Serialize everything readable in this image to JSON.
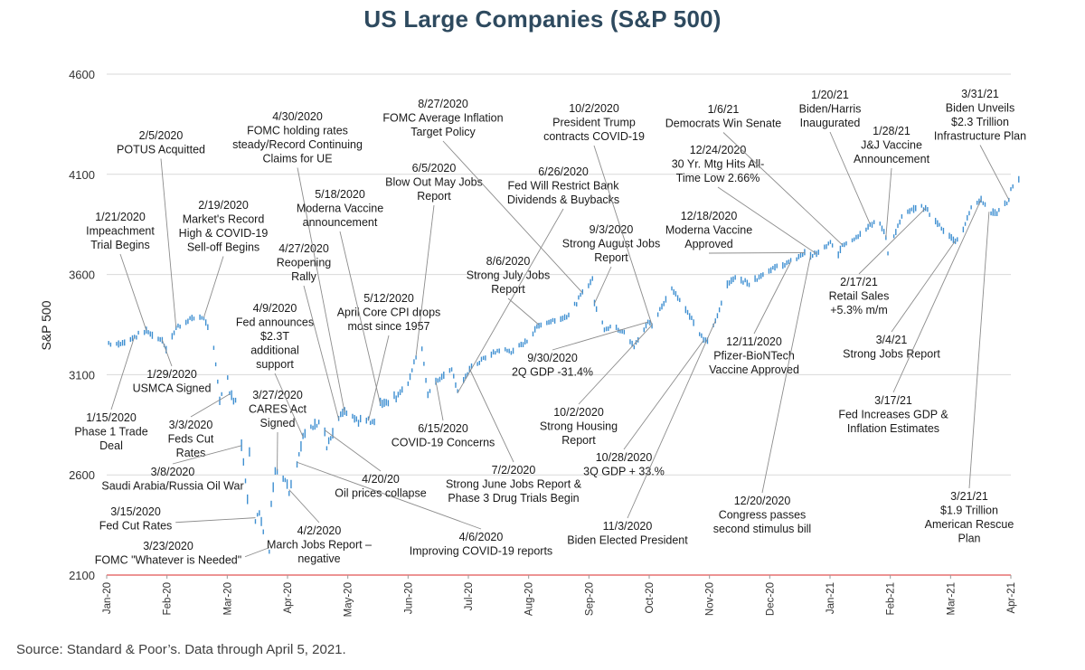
{
  "chart_data": {
    "type": "line",
    "title": "US Large Companies (S&P 500)",
    "ylabel": "S&P 500",
    "xlabel": "",
    "ylim": [
      2100,
      4600
    ],
    "yticks": [
      2100,
      2600,
      3100,
      3600,
      4100,
      4600
    ],
    "grid": true,
    "xticks": [
      "Jan-20",
      "Feb-20",
      "Mar-20",
      "Apr-20",
      "May-20",
      "Jun-20",
      "Jul-20",
      "Aug-20",
      "Sep-20",
      "Oct-20",
      "Nov-20",
      "Dec-20",
      "Jan-21",
      "Feb-21",
      "Mar-21",
      "Apr-21"
    ],
    "series": [
      {
        "color": "#3e8fd1",
        "points": [
          [
            "2020-01-02",
            3258
          ],
          [
            "2020-01-08",
            3253
          ],
          [
            "2020-01-15",
            3289
          ],
          [
            "2020-01-21",
            3321
          ],
          [
            "2020-01-24",
            3295
          ],
          [
            "2020-01-29",
            3273
          ],
          [
            "2020-01-31",
            3225
          ],
          [
            "2020-02-05",
            3334
          ],
          [
            "2020-02-12",
            3379
          ],
          [
            "2020-02-19",
            3386
          ],
          [
            "2020-02-21",
            3337
          ],
          [
            "2020-02-24",
            3225
          ],
          [
            "2020-02-27",
            2979
          ],
          [
            "2020-03-02",
            3090
          ],
          [
            "2020-03-03",
            3003
          ],
          [
            "2020-03-06",
            2972
          ],
          [
            "2020-03-09",
            2746
          ],
          [
            "2020-03-12",
            2480
          ],
          [
            "2020-03-13",
            2711
          ],
          [
            "2020-03-16",
            2386
          ],
          [
            "2020-03-18",
            2398
          ],
          [
            "2020-03-23",
            2237
          ],
          [
            "2020-03-24",
            2447
          ],
          [
            "2020-03-26",
            2630
          ],
          [
            "2020-03-31",
            2585
          ],
          [
            "2020-04-02",
            2526
          ],
          [
            "2020-04-06",
            2663
          ],
          [
            "2020-04-09",
            2790
          ],
          [
            "2020-04-17",
            2875
          ],
          [
            "2020-04-20",
            2823
          ],
          [
            "2020-04-21",
            2737
          ],
          [
            "2020-04-27",
            2878
          ],
          [
            "2020-04-30",
            2912
          ],
          [
            "2020-05-05",
            2868
          ],
          [
            "2020-05-12",
            2870
          ],
          [
            "2020-05-14",
            2852
          ],
          [
            "2020-05-18",
            2954
          ],
          [
            "2020-05-26",
            2992
          ],
          [
            "2020-06-01",
            3055
          ],
          [
            "2020-06-05",
            3194
          ],
          [
            "2020-06-08",
            3232
          ],
          [
            "2020-06-11",
            3002
          ],
          [
            "2020-06-15",
            3067
          ],
          [
            "2020-06-23",
            3131
          ],
          [
            "2020-06-26",
            3009
          ],
          [
            "2020-07-02",
            3130
          ],
          [
            "2020-07-10",
            3185
          ],
          [
            "2020-07-17",
            3224
          ],
          [
            "2020-07-24",
            3216
          ],
          [
            "2020-07-31",
            3271
          ],
          [
            "2020-08-06",
            3349
          ],
          [
            "2020-08-14",
            3373
          ],
          [
            "2020-08-21",
            3397
          ],
          [
            "2020-08-28",
            3508
          ],
          [
            "2020-09-02",
            3580
          ],
          [
            "2020-09-03",
            3455
          ],
          [
            "2020-09-08",
            3332
          ],
          [
            "2020-09-11",
            3340
          ],
          [
            "2020-09-18",
            3319
          ],
          [
            "2020-09-23",
            3237
          ],
          [
            "2020-09-30",
            3363
          ],
          [
            "2020-10-02",
            3348
          ],
          [
            "2020-10-12",
            3534
          ],
          [
            "2020-10-19",
            3427
          ],
          [
            "2020-10-28",
            3271
          ],
          [
            "2020-10-30",
            3270
          ],
          [
            "2020-11-03",
            3369
          ],
          [
            "2020-11-09",
            3551
          ],
          [
            "2020-11-13",
            3585
          ],
          [
            "2020-11-20",
            3557
          ],
          [
            "2020-11-30",
            3622
          ],
          [
            "2020-12-11",
            3663
          ],
          [
            "2020-12-18",
            3709
          ],
          [
            "2020-12-21",
            3694
          ],
          [
            "2020-12-24",
            3703
          ],
          [
            "2020-12-31",
            3756
          ],
          [
            "2021-01-04",
            3700
          ],
          [
            "2021-01-06",
            3748
          ],
          [
            "2021-01-14",
            3795
          ],
          [
            "2021-01-20",
            3851
          ],
          [
            "2021-01-25",
            3855
          ],
          [
            "2021-01-28",
            3787
          ],
          [
            "2021-01-29",
            3714
          ],
          [
            "2021-02-05",
            3886
          ],
          [
            "2021-02-12",
            3934
          ],
          [
            "2021-02-17",
            3931
          ],
          [
            "2021-02-25",
            3829
          ],
          [
            "2021-03-04",
            3768
          ],
          [
            "2021-03-08",
            3821
          ],
          [
            "2021-03-12",
            3943
          ],
          [
            "2021-03-17",
            3974
          ],
          [
            "2021-03-21",
            3913
          ],
          [
            "2021-03-25",
            3909
          ],
          [
            "2021-03-31",
            3973
          ],
          [
            "2021-04-01",
            4020
          ],
          [
            "2021-04-05",
            4077
          ]
        ]
      }
    ],
    "annotations": [
      {
        "label": "1/15/2020\nPhase 1 Trade\nDeal",
        "date": "2020-01-15"
      },
      {
        "label": "1/21/2020\nImpeachment\nTrial Begins",
        "date": "2020-01-21"
      },
      {
        "label": "1/29/2020\nUSMCA Signed",
        "date": "2020-01-29"
      },
      {
        "label": "2/5/2020\nPOTUS Acquitted",
        "date": "2020-02-05"
      },
      {
        "label": "2/19/2020\nMarket's Record\nHigh & COVID-19\nSell-off Begins",
        "date": "2020-02-19"
      },
      {
        "label": "3/3/2020\nFeds Cut\nRates",
        "date": "2020-03-03"
      },
      {
        "label": "3/8/2020\nSaudi Arabia/Russia Oil War",
        "date": "2020-03-09"
      },
      {
        "label": "3/15/2020\nFed Cut Rates",
        "date": "2020-03-16"
      },
      {
        "label": "3/23/2020\nFOMC \"Whatever is Needed\"",
        "date": "2020-03-23"
      },
      {
        "label": "3/27/2020\nCARES Act\nSigned",
        "date": "2020-03-27"
      },
      {
        "label": "4/2/2020\nMarch Jobs Report –\nnegative",
        "date": "2020-04-02"
      },
      {
        "label": "4/6/2020\nImproving COVID-19 reports",
        "date": "2020-04-06"
      },
      {
        "label": "4/9/2020\nFed announces\n$2.3T\nadditional\nsupport",
        "date": "2020-04-09"
      },
      {
        "label": "4/20/20\nOil prices collapse",
        "date": "2020-04-20"
      },
      {
        "label": "4/27/2020\nReopening\nRally",
        "date": "2020-04-27"
      },
      {
        "label": "4/30/2020\nFOMC holding rates\nsteady/Record Continuing\nClaims for UE",
        "date": "2020-04-30"
      },
      {
        "label": "5/12/2020\nApril Core CPI drops\nmost since 1957",
        "date": "2020-05-12"
      },
      {
        "label": "5/18/2020\nModerna Vaccine\nannouncement",
        "date": "2020-05-18"
      },
      {
        "label": "6/5/2020\nBlow Out May Jobs\nReport",
        "date": "2020-06-05"
      },
      {
        "label": "6/15/2020\nCOVID-19 Concerns",
        "date": "2020-06-15"
      },
      {
        "label": "6/26/2020\nFed Will Restrict Bank\nDividends & Buybacks",
        "date": "2020-06-26"
      },
      {
        "label": "7/2/2020\nStrong June Jobs Report &\nPhase 3 Drug Trials Begin",
        "date": "2020-07-02"
      },
      {
        "label": "8/6/2020\nStrong July Jobs\nReport",
        "date": "2020-08-06"
      },
      {
        "label": "8/27/2020\nFOMC Average Inflation\nTarget Policy",
        "date": "2020-08-28"
      },
      {
        "label": "9/3/2020\nStrong August Jobs\nReport",
        "date": "2020-09-03"
      },
      {
        "label": "9/30/2020\n2Q GDP -31.4%",
        "date": "2020-09-30"
      },
      {
        "label": "10/2/2020\nPresident Trump\ncontracts COVID-19",
        "date": "2020-10-02"
      },
      {
        "label": "10/2/2020\nStrong Housing\nReport",
        "date": "2020-10-02"
      },
      {
        "label": "10/28/2020\n3Q GDP + 33.%",
        "date": "2020-10-28"
      },
      {
        "label": "11/3/2020\nBiden Elected President",
        "date": "2020-11-03"
      },
      {
        "label": "12/11/2020\nPfizer-BioNTech\nVaccine Approved",
        "date": "2020-12-11"
      },
      {
        "label": "12/18/2020\nModerna Vaccine\nApproved",
        "date": "2020-12-18"
      },
      {
        "label": "12/20/2020\nCongress passes\nsecond stimulus bill",
        "date": "2020-12-21"
      },
      {
        "label": "12/24/2020\n30 Yr. Mtg Hits All-\nTime Low 2.66%",
        "date": "2020-12-24"
      },
      {
        "label": "1/6/21\nDemocrats Win Senate",
        "date": "2021-01-06"
      },
      {
        "label": "1/20/21\nBiden/Harris\nInaugurated",
        "date": "2021-01-20"
      },
      {
        "label": "1/28/21\nJ&J Vaccine\nAnnouncement",
        "date": "2021-01-28"
      },
      {
        "label": "2/17/21\nRetail Sales\n+5.3% m/m",
        "date": "2021-02-17"
      },
      {
        "label": "3/4/21\nStrong Jobs Report",
        "date": "2021-03-04"
      },
      {
        "label": "3/17/21\nFed Increases GDP &\nInflation Estimates",
        "date": "2021-03-17"
      },
      {
        "label": "3/21/21\n$1.9 Trillion\nAmerican Rescue\nPlan",
        "date": "2021-03-21"
      },
      {
        "label": "3/31/21\nBiden Unveils\n$2.3 Trillion\nInfrastructure Plan",
        "date": "2021-03-31"
      }
    ]
  },
  "source_note": "Source: Standard & Poor’s. Data through April 5, 2021."
}
